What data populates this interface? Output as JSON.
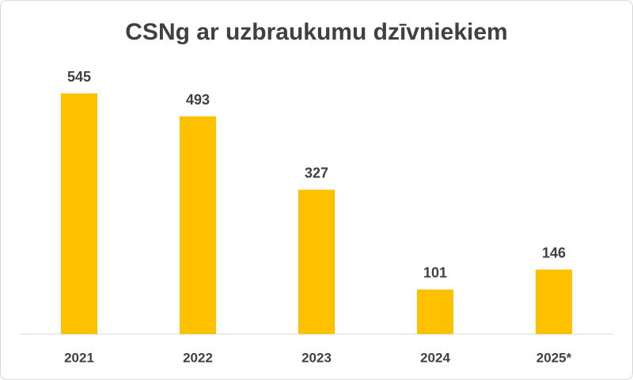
{
  "chart_data": {
    "type": "bar",
    "title": "CSNg ar uzbraukumu dzīvniekiem",
    "categories": [
      "2021",
      "2022",
      "2023",
      "2024",
      "2025*"
    ],
    "values": [
      545,
      493,
      327,
      101,
      146
    ],
    "color": "#ffc000"
  }
}
